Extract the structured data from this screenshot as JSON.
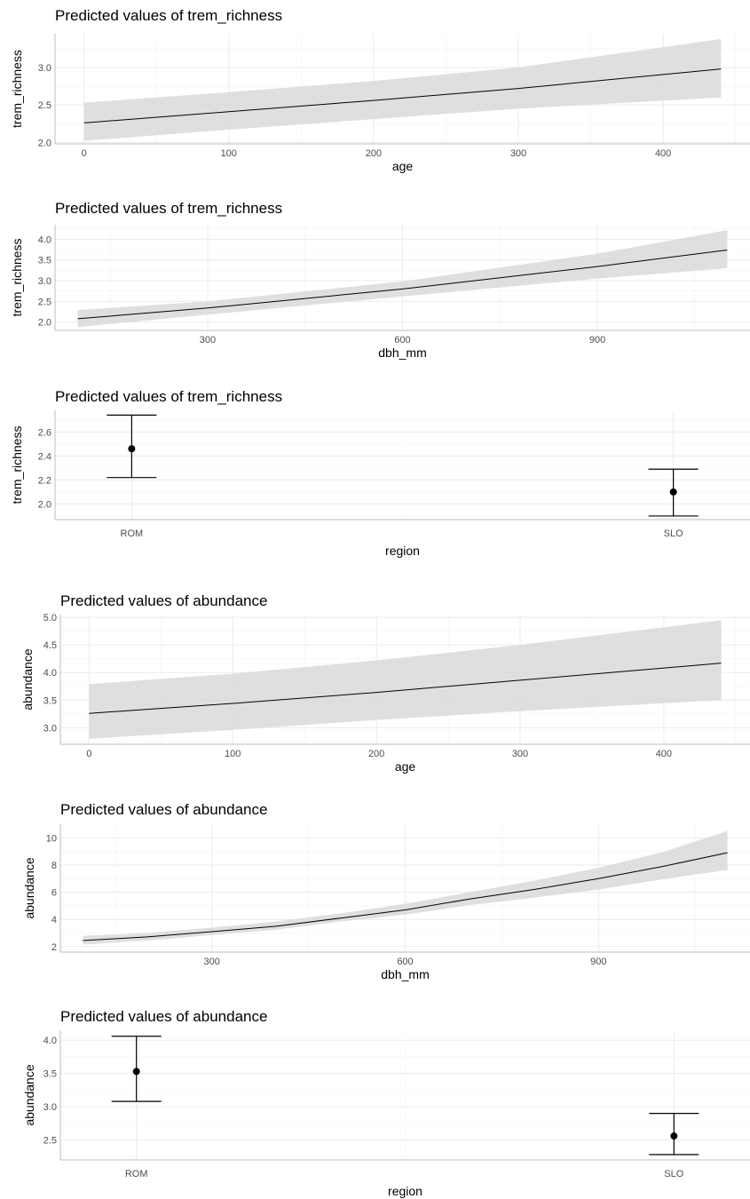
{
  "chart_data": [
    {
      "type": "line",
      "title": "Predicted values of trem_richness",
      "xlabel": "age",
      "ylabel": "trem_richness",
      "xlim": [
        -20,
        460
      ],
      "ylim": [
        1.98,
        3.45
      ],
      "xticks": [
        0,
        100,
        200,
        300,
        400
      ],
      "yticks": [
        2.0,
        2.5,
        3.0
      ],
      "tick_decimals": 1,
      "grid": true,
      "series": [
        {
          "x": [
            0,
            100,
            200,
            300,
            440
          ],
          "y": [
            2.26,
            2.41,
            2.56,
            2.72,
            2.98
          ],
          "lower": [
            2.02,
            2.17,
            2.31,
            2.45,
            2.6
          ],
          "upper": [
            2.53,
            2.67,
            2.82,
            3.0,
            3.38
          ]
        }
      ]
    },
    {
      "type": "line",
      "title": "Predicted values of trem_richness",
      "xlabel": "dbh_mm",
      "ylabel": "trem_richness",
      "xlim": [
        65,
        1135
      ],
      "ylim": [
        1.8,
        4.35
      ],
      "xticks": [
        300,
        600,
        900
      ],
      "yticks": [
        2.0,
        2.5,
        3.0,
        3.5,
        4.0
      ],
      "tick_decimals": 1,
      "grid": true,
      "series": [
        {
          "x": [
            100,
            300,
            600,
            900,
            1100
          ],
          "y": [
            2.08,
            2.34,
            2.8,
            3.34,
            3.74
          ],
          "lower": [
            1.88,
            2.18,
            2.62,
            3.05,
            3.3
          ],
          "upper": [
            2.29,
            2.5,
            2.98,
            3.65,
            4.22
          ]
        }
      ]
    },
    {
      "type": "scatter",
      "title": "Predicted values of trem_richness",
      "xlabel": "region",
      "ylabel": "trem_richness",
      "categories": [
        "ROM",
        "SLO"
      ],
      "ylim": [
        1.87,
        2.78
      ],
      "yticks": [
        2.0,
        2.2,
        2.4,
        2.6
      ],
      "tick_decimals": 1,
      "grid": true,
      "series": [
        {
          "values": [
            2.46,
            2.1
          ],
          "lower": [
            2.22,
            1.9
          ],
          "upper": [
            2.74,
            2.29
          ]
        }
      ]
    },
    {
      "type": "line",
      "title": "Predicted values of abundance",
      "xlabel": "age",
      "ylabel": "abundance",
      "xlim": [
        -20,
        460
      ],
      "ylim": [
        2.7,
        5.05
      ],
      "xticks": [
        0,
        100,
        200,
        300,
        400
      ],
      "yticks": [
        3.0,
        3.5,
        4.0,
        4.5,
        5.0
      ],
      "tick_decimals": 1,
      "grid": true,
      "series": [
        {
          "x": [
            0,
            100,
            200,
            300,
            440
          ],
          "y": [
            3.26,
            3.44,
            3.64,
            3.86,
            4.17
          ],
          "lower": [
            2.8,
            2.96,
            3.14,
            3.3,
            3.5
          ],
          "upper": [
            3.79,
            3.98,
            4.22,
            4.5,
            4.95
          ]
        }
      ]
    },
    {
      "type": "line",
      "title": "Predicted values of abundance",
      "xlabel": "dbh_mm",
      "ylabel": "abundance",
      "xlim": [
        65,
        1135
      ],
      "ylim": [
        1.6,
        11.0
      ],
      "xticks": [
        300,
        600,
        900
      ],
      "yticks": [
        2,
        4,
        6,
        8,
        10
      ],
      "tick_decimals": 0,
      "grid": true,
      "series": [
        {
          "x": [
            100,
            200,
            300,
            400,
            500,
            600,
            700,
            800,
            900,
            1000,
            1100
          ],
          "y": [
            2.45,
            2.72,
            3.1,
            3.5,
            4.1,
            4.7,
            5.5,
            6.2,
            7.0,
            7.9,
            8.9
          ],
          "lower": [
            2.15,
            2.45,
            2.85,
            3.25,
            3.85,
            4.35,
            5.05,
            5.6,
            6.2,
            6.95,
            7.65
          ],
          "upper": [
            2.8,
            3.0,
            3.4,
            3.85,
            4.45,
            5.15,
            6.0,
            6.85,
            7.8,
            8.95,
            10.5
          ]
        }
      ]
    },
    {
      "type": "scatter",
      "title": "Predicted values of abundance",
      "xlabel": "region",
      "ylabel": "abundance",
      "categories": [
        "ROM",
        "SLO"
      ],
      "ylim": [
        2.2,
        4.15
      ],
      "yticks": [
        2.5,
        3.0,
        3.5,
        4.0
      ],
      "tick_decimals": 1,
      "grid": true,
      "series": [
        {
          "values": [
            3.53,
            2.56
          ],
          "lower": [
            3.08,
            2.28
          ],
          "upper": [
            4.06,
            2.9
          ]
        }
      ]
    }
  ]
}
